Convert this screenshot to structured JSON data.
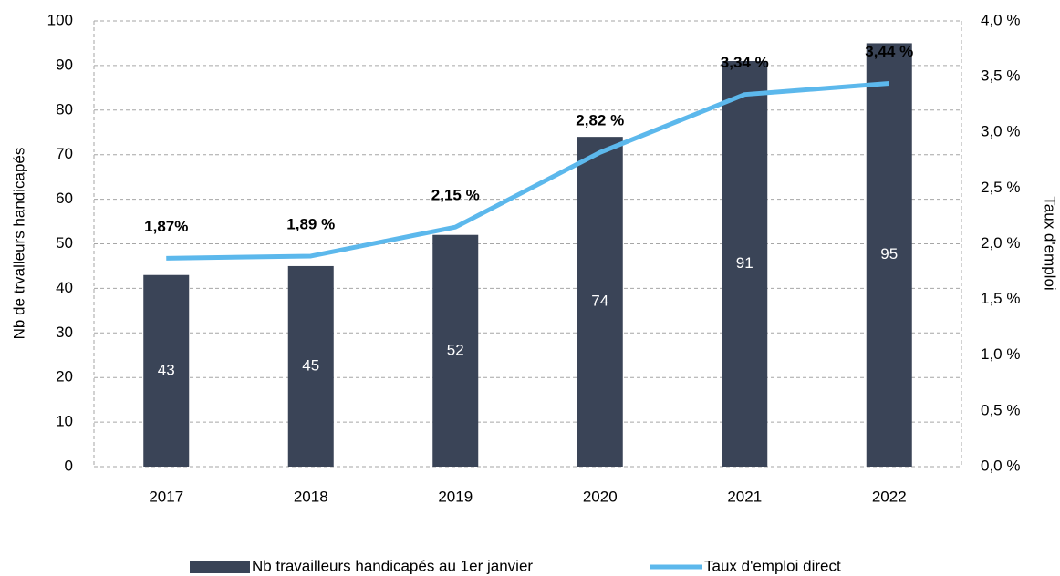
{
  "chart_data": {
    "type": "bar",
    "categories": [
      "2017",
      "2018",
      "2019",
      "2020",
      "2021",
      "2022"
    ],
    "series": [
      {
        "name": "Nb travailleurs handicapés au 1er janvier",
        "type": "bar",
        "color": "#3a4457",
        "values": [
          43,
          45,
          52,
          74,
          91,
          95
        ]
      },
      {
        "name": "Taux d'emploi direct",
        "type": "line",
        "axis": "y2",
        "color": "#5cb8ec",
        "values": [
          1.87,
          1.89,
          2.15,
          2.82,
          3.34,
          3.44
        ],
        "value_labels": [
          "1,87%",
          "1,89 %",
          "2,15 %",
          "2,82 %",
          "3,34 %",
          "3,44 %"
        ]
      }
    ],
    "ylabel": "Nb de trvalleurs handicapés",
    "y2label": "Taux d'emploi",
    "ylim": [
      0,
      100
    ],
    "yticks": [
      0,
      10,
      20,
      30,
      40,
      50,
      60,
      70,
      80,
      90,
      100
    ],
    "y2lim": [
      0,
      4
    ],
    "y2ticks": [
      {
        "value": 0,
        "label": "0,0 %"
      },
      {
        "value": 0.5,
        "label": "0,5 %"
      },
      {
        "value": 1,
        "label": "1,0 %"
      },
      {
        "value": 1.5,
        "label": "1,5 %"
      },
      {
        "value": 2,
        "label": "2,0 %"
      },
      {
        "value": 2.5,
        "label": "2,5 %"
      },
      {
        "value": 3,
        "label": "3,0 %"
      },
      {
        "value": 3.5,
        "label": "3,5 %"
      },
      {
        "value": 4,
        "label": "4,0 %"
      }
    ],
    "grid": true,
    "legend": "bottom"
  }
}
